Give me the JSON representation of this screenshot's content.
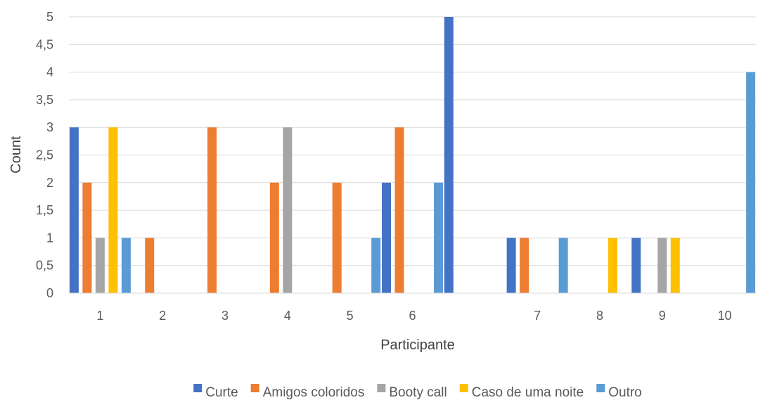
{
  "chart_data": {
    "type": "bar",
    "title": "",
    "xlabel": "Participante",
    "ylabel": "Count",
    "ylim": [
      0,
      5
    ],
    "grid": true,
    "legend_position": "bottom",
    "categories": [
      "1",
      "2",
      "3",
      "4",
      "5",
      "6",
      "",
      "7",
      "8",
      "9",
      "10"
    ],
    "y_ticks": [
      "0",
      "0,5",
      "1",
      "1,5",
      "2",
      "2,5",
      "3",
      "3,5",
      "4",
      "4,5",
      "5"
    ],
    "series": [
      {
        "name": "Curte",
        "color": "#4472C4",
        "values": [
          3,
          0,
          0,
          0,
          0,
          2,
          5,
          1,
          0,
          1,
          0
        ]
      },
      {
        "name": "Amigos coloridos",
        "color": "#ED7D31",
        "values": [
          2,
          1,
          3,
          2,
          2,
          3,
          0,
          1,
          0,
          0,
          0
        ]
      },
      {
        "name": "Booty call",
        "color": "#A5A5A5",
        "values": [
          1,
          0,
          0,
          3,
          0,
          0,
          0,
          0,
          0,
          1,
          0
        ]
      },
      {
        "name": "Caso de uma noite",
        "color": "#FFC000",
        "values": [
          3,
          0,
          0,
          0,
          0,
          0,
          0,
          0,
          1,
          1,
          0
        ]
      },
      {
        "name": "Outro",
        "color": "#5B9BD5",
        "values": [
          1,
          0,
          0,
          0,
          1,
          2,
          0,
          1,
          0,
          0,
          4
        ]
      }
    ]
  }
}
